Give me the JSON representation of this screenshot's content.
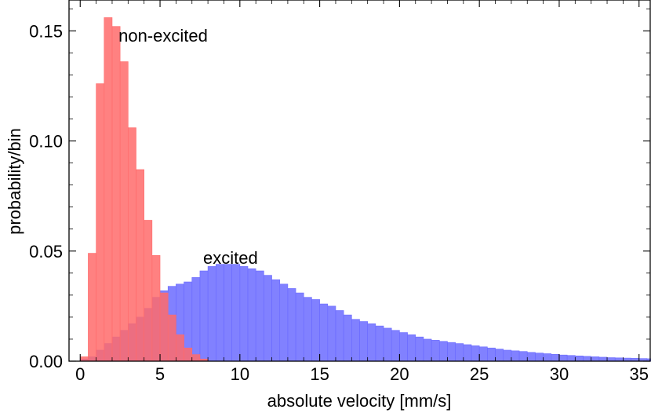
{
  "chart_data": {
    "type": "bar",
    "xlabel": "absolute velocity [mm/s]",
    "ylabel": "probability/bin",
    "xlim": [
      -0.7,
      35.7
    ],
    "ylim": [
      0.0,
      0.164
    ],
    "xticks": [
      0,
      5,
      10,
      15,
      20,
      25,
      30,
      35
    ],
    "xtick_labels": [
      "0",
      "5",
      "10",
      "15",
      "20",
      "25",
      "30",
      "35"
    ],
    "yticks": [
      0.0,
      0.05,
      0.1,
      0.15
    ],
    "ytick_labels": [
      "0.00",
      "0.05",
      "0.10",
      "0.15"
    ],
    "bin_width": 0.5,
    "grid": false,
    "series": [
      {
        "name": "non-excited",
        "color": "#ff6b6b",
        "bin_start": 0.0,
        "values": [
          0.002,
          0.049,
          0.126,
          0.156,
          0.152,
          0.136,
          0.106,
          0.087,
          0.064,
          0.048,
          0.031,
          0.021,
          0.012,
          0.006,
          0.003,
          0.001
        ]
      },
      {
        "name": "excited",
        "color": "#6b6bff",
        "bin_start": 0.0,
        "values": [
          0.001,
          0.002,
          0.005,
          0.008,
          0.011,
          0.014,
          0.017,
          0.02,
          0.024,
          0.029,
          0.032,
          0.034,
          0.035,
          0.036,
          0.038,
          0.041,
          0.043,
          0.044,
          0.044,
          0.044,
          0.043,
          0.042,
          0.041,
          0.039,
          0.037,
          0.035,
          0.033,
          0.031,
          0.029,
          0.028,
          0.026,
          0.025,
          0.023,
          0.021,
          0.019,
          0.018,
          0.017,
          0.016,
          0.015,
          0.014,
          0.013,
          0.012,
          0.011,
          0.01,
          0.0095,
          0.009,
          0.0085,
          0.008,
          0.0075,
          0.007,
          0.0065,
          0.006,
          0.0055,
          0.005,
          0.0047,
          0.0044,
          0.004,
          0.0037,
          0.0034,
          0.0031,
          0.0028,
          0.0026,
          0.0024,
          0.0022,
          0.002,
          0.0018,
          0.0016,
          0.0015,
          0.0014,
          0.0013,
          0.0012,
          0.0011,
          0.001,
          0.0009,
          0.0008,
          0.0007,
          0.0006,
          0.0005,
          0.0004
        ]
      }
    ],
    "annotations": [
      {
        "text": "non-excited",
        "x": 2.4,
        "y": 0.148
      },
      {
        "text": "excited",
        "x": 7.7,
        "y": 0.047
      }
    ]
  }
}
